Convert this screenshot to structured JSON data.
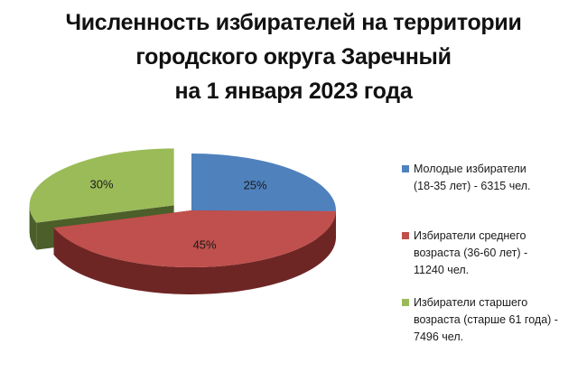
{
  "chart_data": {
    "type": "pie",
    "title_lines": [
      "Численность избирателей на территории",
      "городского округа Заречный",
      "на 1 января 2023 года"
    ],
    "slices": [
      {
        "label_lines": [
          "Молодые избиратели",
          "(18-35 лет) - 6315 чел."
        ],
        "value": 6315,
        "percent_label": "25%",
        "color": "#4F81BD",
        "side_color": "#243D5E",
        "exploded": false
      },
      {
        "label_lines": [
          "Избиратели среднего",
          "возраста (36-60 лет) -",
          "11240 чел."
        ],
        "value": 11240,
        "percent_label": "45%",
        "color": "#C0504D",
        "side_color": "#6E2624",
        "exploded": false
      },
      {
        "label_lines": [
          "Избиратели старшего",
          "возраста (старше 61 года) -",
          "7496 чел."
        ],
        "value": 7496,
        "percent_label": "30%",
        "color": "#9BBB59",
        "side_color": "#4C5E2A",
        "exploded": true
      }
    ],
    "legend_position": "right",
    "style": "3d-pie"
  }
}
